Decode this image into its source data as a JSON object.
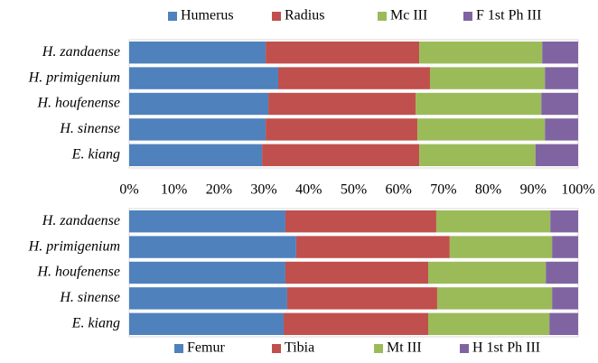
{
  "chart_data": [
    {
      "type": "bar",
      "orientation": "horizontal",
      "stacked": true,
      "legend": "top",
      "categories": [
        "H. zandaense",
        "H. primigenium",
        "H. houfenense",
        "H. sinense",
        "E. kiang"
      ],
      "series": [
        {
          "name": "Humerus",
          "color": "#4f81bd",
          "values": [
            30.4,
            33.2,
            31.0,
            30.4,
            29.6
          ]
        },
        {
          "name": "Radius",
          "color": "#c0504d",
          "values": [
            34.2,
            33.8,
            32.8,
            33.8,
            35.0
          ]
        },
        {
          "name": "Mc III",
          "color": "#9bbb59",
          "values": [
            27.4,
            25.6,
            28.0,
            28.4,
            25.9
          ]
        },
        {
          "name": "F 1st Ph III",
          "color": "#8064a2",
          "values": [
            8.0,
            7.4,
            8.2,
            7.4,
            9.5
          ]
        }
      ],
      "xlim": [
        0,
        100
      ],
      "xticks": [
        {
          "value": 0,
          "label": "0%"
        },
        {
          "value": 10,
          "label": "10%"
        },
        {
          "value": 20,
          "label": "20%"
        },
        {
          "value": 30,
          "label": "30%"
        },
        {
          "value": 40,
          "label": "40%"
        },
        {
          "value": 50,
          "label": "50%"
        },
        {
          "value": 60,
          "label": "60%"
        },
        {
          "value": 70,
          "label": "70%"
        },
        {
          "value": 80,
          "label": "80%"
        },
        {
          "value": 90,
          "label": "90%"
        },
        {
          "value": 100,
          "label": "100%"
        }
      ]
    },
    {
      "type": "bar",
      "orientation": "horizontal",
      "stacked": true,
      "legend": "bottom",
      "categories": [
        "H. zandaense",
        "H. primigenium",
        "H. houfenense",
        "H. sinense",
        "E. kiang"
      ],
      "series": [
        {
          "name": "Femur",
          "color": "#4f81bd",
          "values": [
            34.8,
            37.2,
            34.8,
            35.2,
            34.4
          ]
        },
        {
          "name": "Tibia",
          "color": "#c0504d",
          "values": [
            33.6,
            34.2,
            31.8,
            33.4,
            32.2
          ]
        },
        {
          "name": "Mt III",
          "color": "#9bbb59",
          "values": [
            25.4,
            22.8,
            26.2,
            25.6,
            27.0
          ]
        },
        {
          "name": "H 1st Ph III",
          "color": "#8064a2",
          "values": [
            6.2,
            5.8,
            7.2,
            5.8,
            6.4
          ]
        }
      ],
      "xlim": [
        0,
        100
      ]
    }
  ]
}
